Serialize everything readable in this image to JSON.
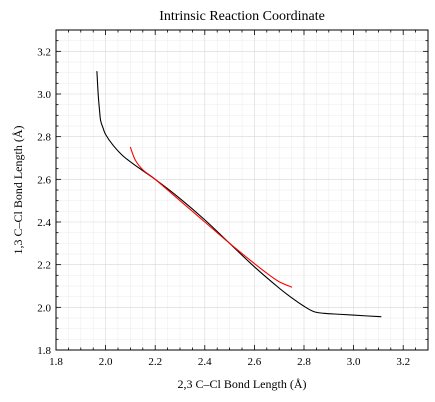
{
  "chart_data": {
    "type": "line",
    "title": "Intrinsic Reaction Coordinate",
    "xlabel": "2,3 C–Cl Bond Length (Å)",
    "ylabel": "1,3 C–Cl Bond Length (Å)",
    "xlim": [
      1.8,
      3.3
    ],
    "ylim": [
      1.8,
      3.3
    ],
    "xticks": [
      "1.8",
      "2.0",
      "2.2",
      "2.4",
      "2.6",
      "2.8",
      "3.0",
      "3.2"
    ],
    "yticks": [
      "1.8",
      "2.0",
      "2.2",
      "2.4",
      "2.6",
      "2.8",
      "3.0",
      "3.2"
    ],
    "grid": true,
    "series": [
      {
        "color": "#000000",
        "x": [
          1.965,
          1.97,
          1.975,
          1.98,
          1.99,
          2.0,
          2.03,
          2.07,
          2.12,
          2.2,
          2.3,
          2.4,
          2.5,
          2.6,
          2.7,
          2.75,
          2.8,
          2.84,
          2.88,
          2.95,
          3.05,
          3.11
        ],
        "y": [
          3.105,
          3.0,
          2.93,
          2.875,
          2.84,
          2.81,
          2.76,
          2.71,
          2.665,
          2.6,
          2.51,
          2.41,
          2.3,
          2.19,
          2.09,
          2.045,
          2.005,
          1.98,
          1.972,
          1.967,
          1.96,
          1.956
        ]
      },
      {
        "color": "#ff0000",
        "x": [
          2.1,
          2.12,
          2.15,
          2.2,
          2.3,
          2.4,
          2.5,
          2.6,
          2.65,
          2.7,
          2.75
        ],
        "y": [
          2.75,
          2.69,
          2.645,
          2.6,
          2.5,
          2.4,
          2.3,
          2.205,
          2.16,
          2.12,
          2.095
        ]
      }
    ]
  }
}
